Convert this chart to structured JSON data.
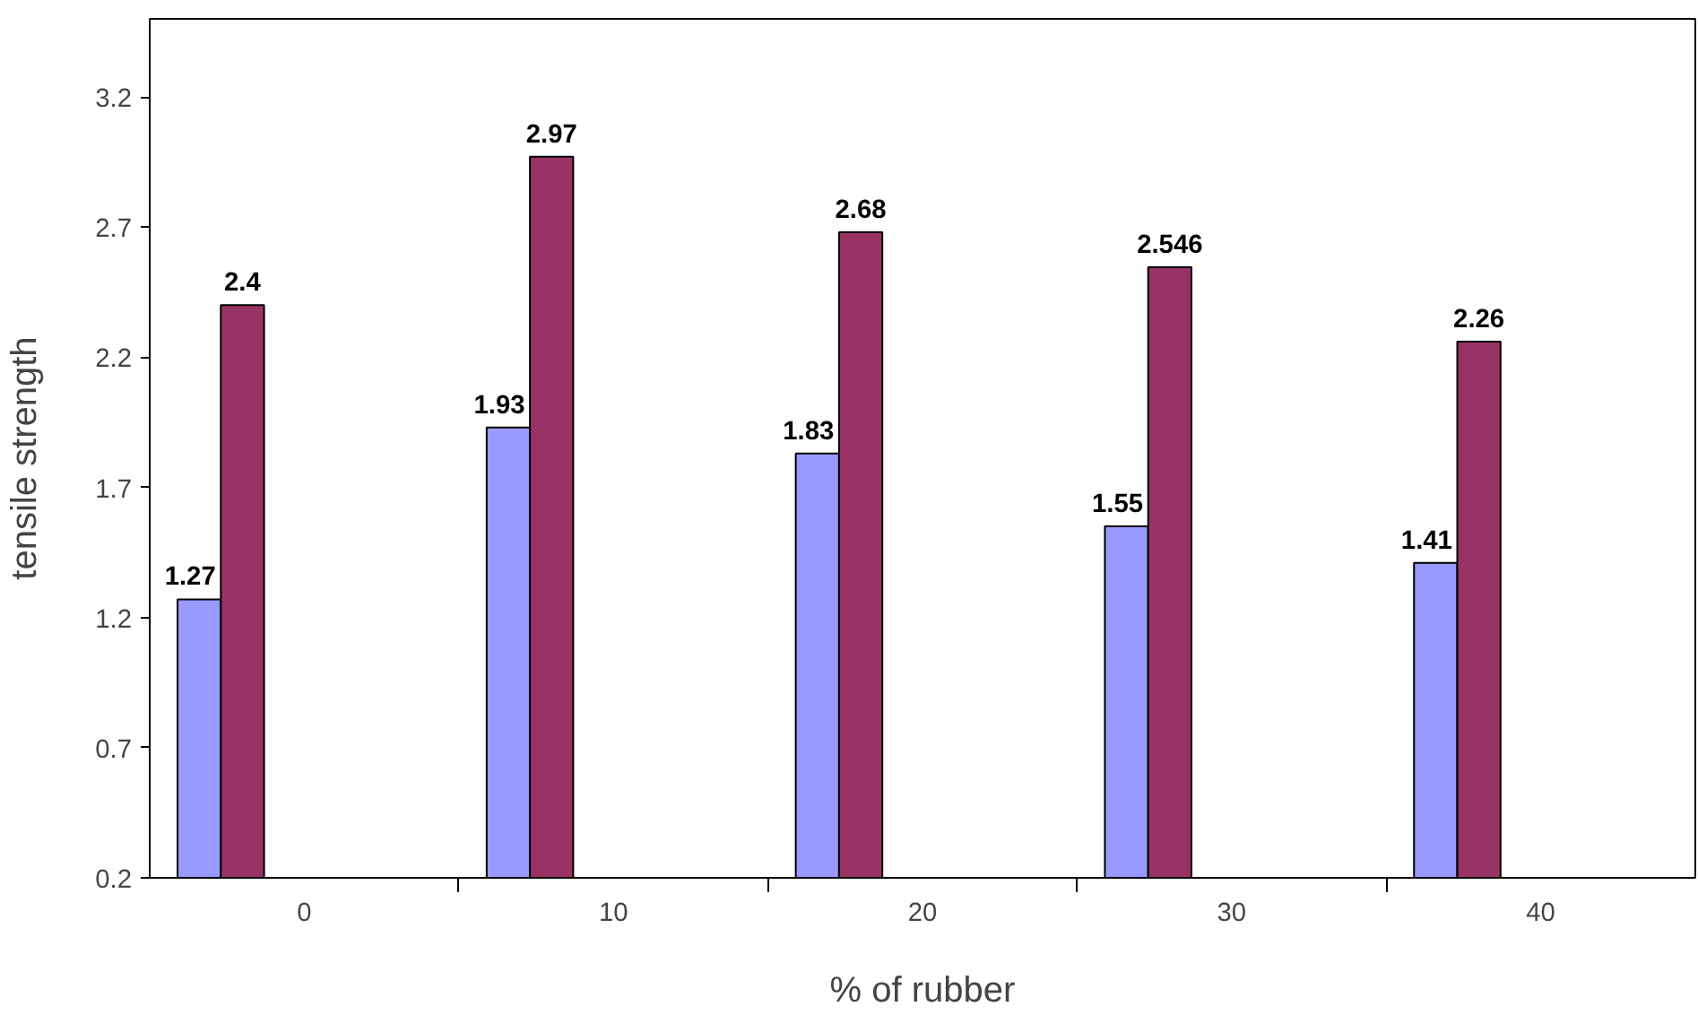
{
  "chart_data": {
    "type": "bar",
    "xlabel": "% of rubber",
    "ylabel": "tensile   strength",
    "categories": [
      "0",
      "10",
      "20",
      "30",
      "40"
    ],
    "series": [
      {
        "color": "#9999ff",
        "values": [
          1.27,
          1.93,
          1.83,
          1.55,
          1.41
        ]
      },
      {
        "color": "#993366",
        "values": [
          2.4,
          2.97,
          2.68,
          2.546,
          2.26
        ]
      }
    ],
    "ylim": [
      0.2,
      3.5
    ],
    "yticks": [
      0.2,
      0.7,
      1.2,
      1.7,
      2.2,
      2.7,
      3.2
    ],
    "data_labels": true,
    "grid": false
  }
}
